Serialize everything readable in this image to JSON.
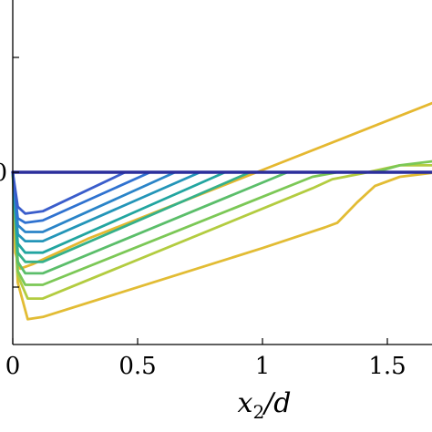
{
  "chart_data": {
    "type": "line",
    "title": "",
    "xlabel": "x2/d",
    "xlabel_parts": {
      "x": "x",
      "sub": "2",
      "rest": "/d"
    },
    "ylabel": "",
    "xlim": [
      0,
      1.7
    ],
    "ylim": [
      -0.7,
      0.7
    ],
    "x_ticks": [
      0,
      0.5,
      1,
      1.5
    ],
    "x_tick_labels": [
      "0",
      "0.5",
      "1",
      "1.5"
    ],
    "y_ticks": [
      -0.5,
      0,
      0.5
    ],
    "y_tick_labels": [
      "",
      "0",
      ""
    ],
    "grid": false,
    "legend": "none",
    "series": [
      {
        "color": "#e5b830",
        "points": [
          [
            0,
            0
          ],
          [
            0.01,
            -0.35
          ],
          [
            0.03,
            -0.42
          ],
          [
            0.08,
            -0.4
          ],
          [
            0.3,
            -0.29
          ],
          [
            1.0,
            0.01
          ],
          [
            1.7,
            0.31
          ]
        ]
      },
      {
        "color": "#e2bc34",
        "points": [
          [
            0,
            0
          ],
          [
            0.02,
            -0.48
          ],
          [
            0.06,
            -0.64
          ],
          [
            0.12,
            -0.63
          ],
          [
            1.0,
            -0.33
          ],
          [
            1.25,
            -0.24
          ],
          [
            1.3,
            -0.22
          ],
          [
            1.38,
            -0.13
          ],
          [
            1.45,
            -0.06
          ],
          [
            1.55,
            -0.02
          ],
          [
            1.7,
            0.0
          ]
        ]
      },
      {
        "color": "#b3cc40",
        "points": [
          [
            0,
            0
          ],
          [
            0.02,
            -0.45
          ],
          [
            0.06,
            -0.55
          ],
          [
            0.12,
            -0.55
          ],
          [
            1.2,
            -0.07
          ],
          [
            1.28,
            -0.03
          ],
          [
            1.4,
            -0.005
          ],
          [
            1.55,
            0.03
          ],
          [
            1.7,
            0.03
          ]
        ]
      },
      {
        "color": "#7cc856",
        "points": [
          [
            0,
            0
          ],
          [
            0.02,
            -0.43
          ],
          [
            0.05,
            -0.49
          ],
          [
            0.12,
            -0.49
          ],
          [
            1.2,
            -0.02
          ],
          [
            1.3,
            0.0
          ],
          [
            1.45,
            0.0
          ],
          [
            1.55,
            0.03
          ],
          [
            1.7,
            0.05
          ]
        ]
      },
      {
        "color": "#5bbe6a",
        "points": [
          [
            0,
            0
          ],
          [
            0.02,
            -0.39
          ],
          [
            0.05,
            -0.44
          ],
          [
            0.12,
            -0.44
          ],
          [
            1.1,
            0.0
          ],
          [
            1.7,
            0.0
          ]
        ]
      },
      {
        "color": "#36b18a",
        "points": [
          [
            0,
            0
          ],
          [
            0.02,
            -0.35
          ],
          [
            0.05,
            -0.39
          ],
          [
            0.12,
            -0.39
          ],
          [
            0.95,
            0.0
          ],
          [
            1.7,
            0.0
          ]
        ]
      },
      {
        "color": "#22a5a0",
        "points": [
          [
            0,
            0
          ],
          [
            0.02,
            -0.31
          ],
          [
            0.05,
            -0.35
          ],
          [
            0.12,
            -0.35
          ],
          [
            0.85,
            0.0
          ],
          [
            1.7,
            0.0
          ]
        ]
      },
      {
        "color": "#2395b8",
        "points": [
          [
            0,
            0
          ],
          [
            0.02,
            -0.27
          ],
          [
            0.05,
            -0.3
          ],
          [
            0.12,
            -0.3
          ],
          [
            0.75,
            0.0
          ],
          [
            1.7,
            0.0
          ]
        ]
      },
      {
        "color": "#2a84c8",
        "points": [
          [
            0,
            0
          ],
          [
            0.02,
            -0.23
          ],
          [
            0.05,
            -0.26
          ],
          [
            0.12,
            -0.26
          ],
          [
            0.65,
            0.0
          ],
          [
            1.7,
            0.0
          ]
        ]
      },
      {
        "color": "#2f72d0",
        "points": [
          [
            0,
            0
          ],
          [
            0.02,
            -0.2
          ],
          [
            0.05,
            -0.22
          ],
          [
            0.12,
            -0.21
          ],
          [
            0.55,
            0.0
          ],
          [
            1.7,
            0.0
          ]
        ]
      },
      {
        "color": "#3a5dcb",
        "points": [
          [
            0,
            0
          ],
          [
            0.02,
            -0.15
          ],
          [
            0.05,
            -0.18
          ],
          [
            0.12,
            -0.17
          ],
          [
            0.45,
            0.0
          ],
          [
            1.7,
            0.0
          ]
        ]
      },
      {
        "color": "#2b2e9c",
        "points": [
          [
            0,
            0
          ],
          [
            1.7,
            0.0
          ]
        ]
      }
    ]
  }
}
